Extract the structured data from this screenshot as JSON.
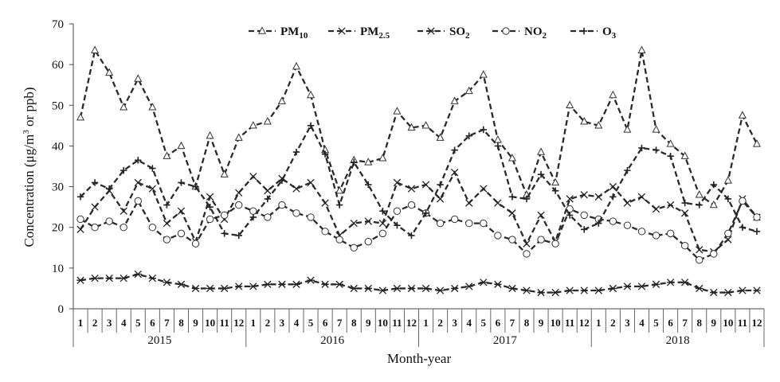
{
  "chart_data": {
    "type": "line",
    "xlabel": "Month-year",
    "ylabel": "Concentration (μg/m³ or ppb)",
    "ylabel_parts": {
      "before": "Concentration (μg/m",
      "sup": "3",
      "after": " or ppb)"
    },
    "ylim": [
      0,
      70
    ],
    "yticks": [
      0,
      10,
      20,
      30,
      40,
      50,
      60,
      70
    ],
    "grid": false,
    "legend_position": "top",
    "years": [
      "2015",
      "2016",
      "2017",
      "2018"
    ],
    "months": [
      "1",
      "2",
      "3",
      "4",
      "5",
      "6",
      "7",
      "8",
      "9",
      "10",
      "11",
      "12"
    ],
    "series": [
      {
        "name": "PM10",
        "label_main": "PM",
        "label_sub": "10",
        "marker": "triangle",
        "values": [
          47,
          63.5,
          58,
          49.5,
          56.5,
          49.5,
          37.5,
          40,
          30,
          42.5,
          33,
          42,
          45,
          46,
          51,
          59.5,
          52.5,
          39,
          29,
          36.5,
          36,
          37,
          48.5,
          44.5,
          45,
          42,
          51,
          53.5,
          57.5,
          41.5,
          37,
          28,
          38.5,
          31,
          50,
          46,
          45,
          52.5,
          44,
          63.5,
          44,
          40.5,
          37.5,
          28,
          25.5,
          31.5,
          47.5,
          40.5
        ]
      },
      {
        "name": "PM2.5",
        "label_main": "PM",
        "label_sub": "2.5",
        "marker": "x",
        "values": [
          19.5,
          25,
          29,
          24,
          31,
          29.5,
          21,
          24,
          16.5,
          27.5,
          22,
          28.5,
          32.5,
          29,
          32,
          29.5,
          31,
          26,
          18,
          21,
          21.5,
          21,
          31,
          29.5,
          30.5,
          27,
          33.5,
          26,
          29.5,
          26,
          23.5,
          16,
          23,
          16.5,
          27,
          28,
          27.5,
          30,
          26,
          27.5,
          24.5,
          25.5,
          23.5,
          14.5,
          14,
          17,
          27,
          22.5
        ]
      },
      {
        "name": "SO2",
        "label_main": "SO",
        "label_sub": "2",
        "marker": "star",
        "values": [
          7,
          7.5,
          7.5,
          7.5,
          8.5,
          7.5,
          6.5,
          6,
          5,
          5,
          5,
          5.5,
          5.5,
          6,
          6,
          6,
          7,
          6,
          6,
          5,
          5,
          4.5,
          5,
          5,
          5,
          4.5,
          5,
          5.5,
          6.5,
          6,
          5,
          4.5,
          4,
          4,
          4.5,
          4.5,
          4.5,
          5,
          5.5,
          5.5,
          6,
          6.5,
          6.5,
          5,
          4,
          4,
          4.5,
          4.5
        ]
      },
      {
        "name": "NO2",
        "label_main": "NO",
        "label_sub": "2",
        "marker": "circle",
        "values": [
          22,
          20,
          21.5,
          20,
          26.5,
          20,
          17,
          18.5,
          16,
          22,
          23,
          25.5,
          24,
          22.5,
          25.5,
          23.5,
          22.5,
          19,
          17,
          15,
          16.5,
          18.5,
          24,
          25.5,
          23.5,
          21,
          22,
          21,
          21,
          18,
          17,
          13.5,
          17,
          16,
          24.5,
          23,
          22,
          21.5,
          20.5,
          19,
          18,
          18.5,
          15.5,
          12,
          13.5,
          18.5,
          26.5,
          22.5
        ]
      },
      {
        "name": "O3",
        "label_main": "O",
        "label_sub": "3",
        "marker": "plus",
        "values": [
          27.5,
          31,
          29.5,
          34,
          36.5,
          34.5,
          25.5,
          31,
          30,
          25,
          18.5,
          18,
          22.5,
          27,
          31.5,
          38.5,
          45,
          38,
          25.5,
          36,
          30.5,
          24,
          20.5,
          18,
          23.5,
          30.5,
          39,
          42.5,
          44,
          40,
          27.5,
          27,
          33,
          29,
          23,
          19.5,
          21,
          27.5,
          34,
          39.5,
          39,
          37.5,
          26,
          25.5,
          30.5,
          27,
          20,
          19
        ]
      }
    ]
  }
}
